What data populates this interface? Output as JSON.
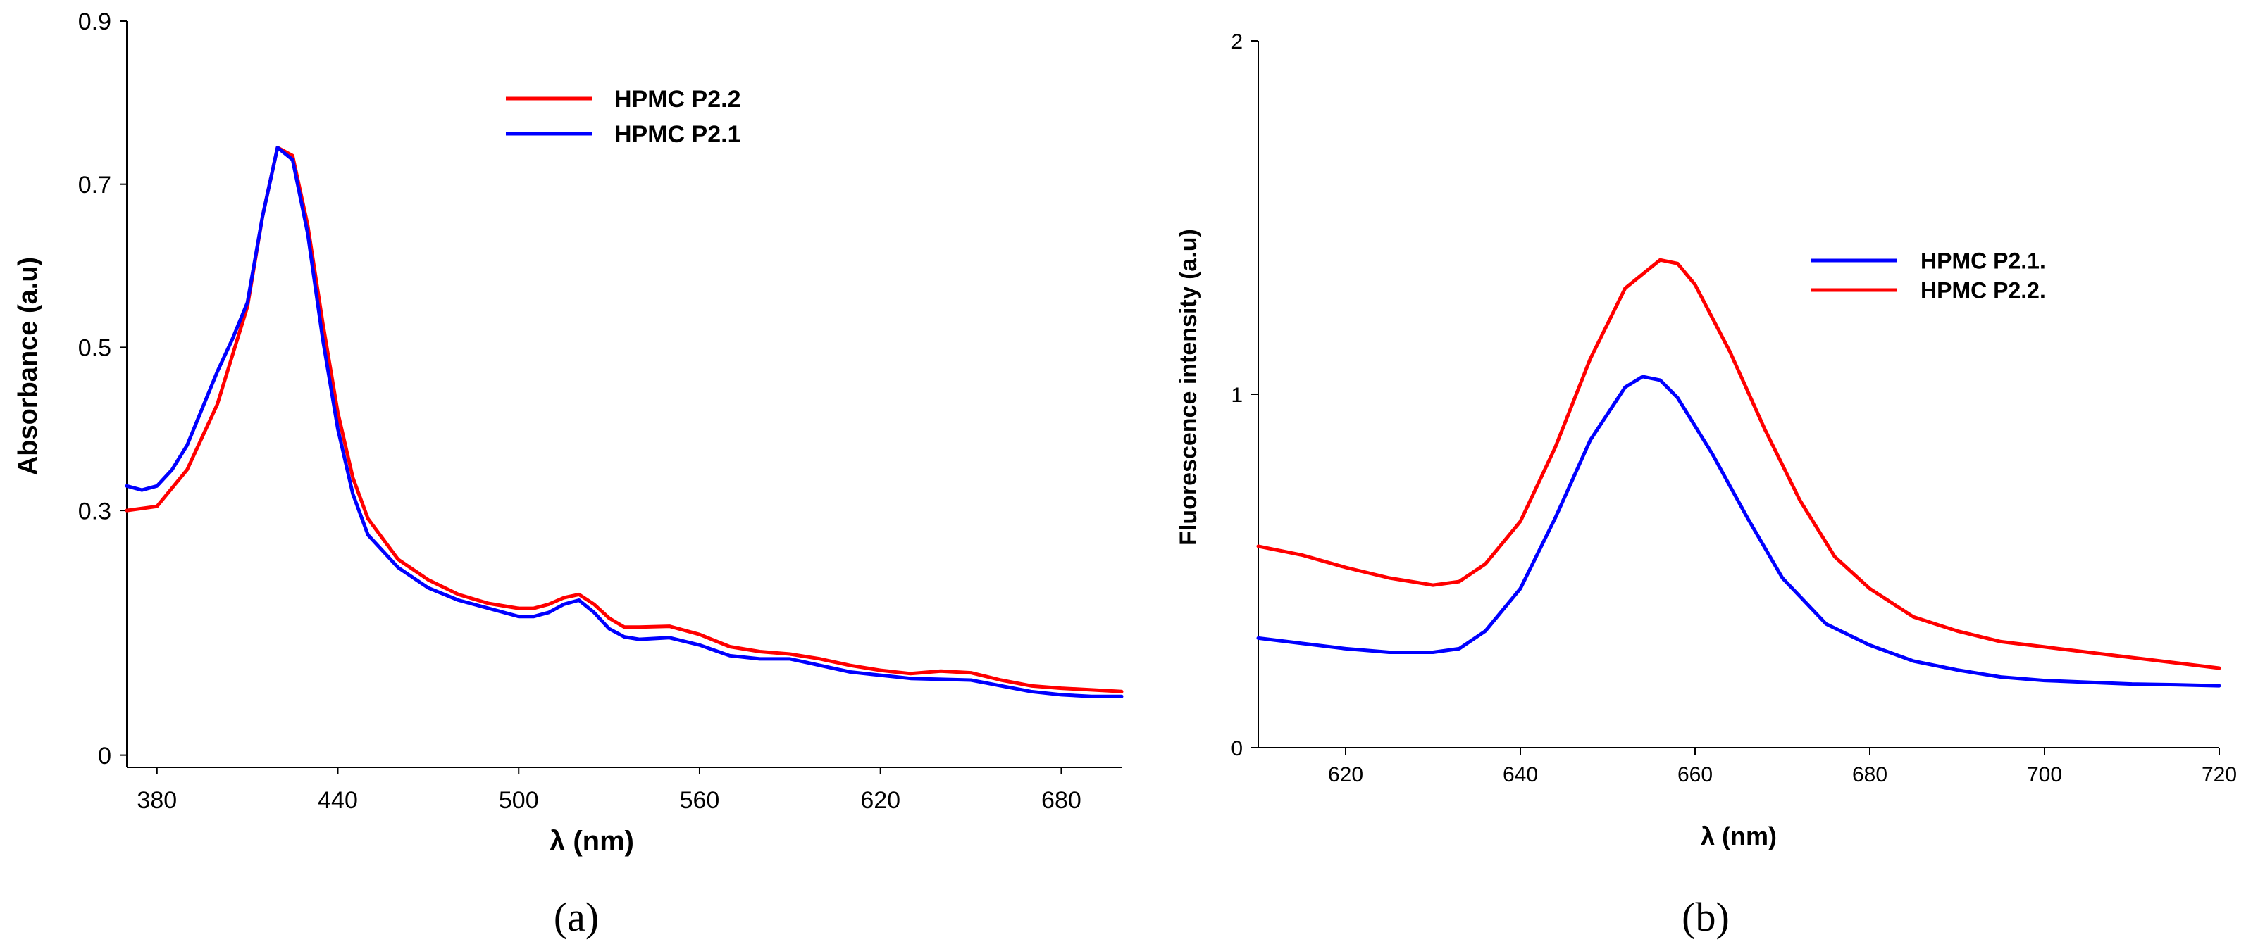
{
  "chart_data": [
    {
      "type": "line",
      "panel_label": "(a)",
      "xlabel": "λ  (nm)",
      "ylabel": "Absorbance (a.u)",
      "xlim": [
        370,
        700
      ],
      "ylim": [
        -0.015,
        0.9
      ],
      "xticks": [
        380,
        440,
        500,
        560,
        620,
        680
      ],
      "xtick_labels": [
        "380",
        "440",
        "500",
        "560",
        "620",
        "680"
      ],
      "yticks": [
        0,
        0.3,
        0.5,
        0.7,
        0.9
      ],
      "ytick_labels": [
        "0",
        "0.3",
        "0.5",
        "0.7",
        "0.9"
      ],
      "legend_position": "top-center",
      "series": [
        {
          "name": "HPMC P2.2",
          "color": "#ff0000",
          "x": [
            370,
            380,
            390,
            400,
            410,
            415,
            420,
            425,
            430,
            435,
            440,
            445,
            450,
            460,
            470,
            480,
            490,
            500,
            505,
            510,
            515,
            520,
            525,
            530,
            535,
            540,
            550,
            560,
            570,
            580,
            590,
            600,
            610,
            620,
            630,
            640,
            650,
            660,
            670,
            680,
            690,
            700
          ],
          "y": [
            0.3,
            0.305,
            0.35,
            0.43,
            0.55,
            0.66,
            0.745,
            0.735,
            0.65,
            0.53,
            0.42,
            0.34,
            0.29,
            0.24,
            0.215,
            0.197,
            0.186,
            0.18,
            0.18,
            0.185,
            0.193,
            0.197,
            0.185,
            0.168,
            0.157,
            0.157,
            0.158,
            0.148,
            0.133,
            0.127,
            0.124,
            0.118,
            0.11,
            0.104,
            0.1,
            0.103,
            0.101,
            0.092,
            0.085,
            0.082,
            0.08,
            0.078
          ]
        },
        {
          "name": "HPMC P2.1",
          "color": "#0000ff",
          "x": [
            370,
            375,
            380,
            385,
            390,
            400,
            405,
            410,
            415,
            420,
            425,
            430,
            435,
            440,
            445,
            450,
            460,
            470,
            480,
            490,
            500,
            505,
            510,
            515,
            520,
            525,
            530,
            535,
            540,
            550,
            560,
            570,
            580,
            590,
            600,
            610,
            620,
            630,
            640,
            650,
            660,
            670,
            680,
            690,
            700
          ],
          "y": [
            0.33,
            0.325,
            0.33,
            0.35,
            0.38,
            0.47,
            0.51,
            0.555,
            0.66,
            0.745,
            0.73,
            0.64,
            0.51,
            0.4,
            0.32,
            0.27,
            0.23,
            0.205,
            0.19,
            0.18,
            0.17,
            0.17,
            0.175,
            0.185,
            0.19,
            0.175,
            0.155,
            0.145,
            0.142,
            0.144,
            0.135,
            0.122,
            0.118,
            0.118,
            0.11,
            0.102,
            0.098,
            0.094,
            0.093,
            0.092,
            0.085,
            0.078,
            0.074,
            0.072,
            0.072
          ]
        }
      ]
    },
    {
      "type": "line",
      "panel_label": "(b)",
      "xlabel": "λ (nm)",
      "ylabel": "Fluorescence intensity (a.u)",
      "xlim": [
        610,
        720
      ],
      "ylim": [
        0,
        2
      ],
      "xticks": [
        620,
        640,
        660,
        680,
        700,
        720
      ],
      "xtick_labels": [
        "620",
        "640",
        "660",
        "680",
        "700",
        "720"
      ],
      "yticks": [
        0,
        1,
        2
      ],
      "ytick_labels": [
        "0",
        "1",
        "2"
      ],
      "legend_position": "right-center",
      "series": [
        {
          "name": "HPMC P2.1.",
          "color": "#0000ff",
          "x": [
            610,
            615,
            620,
            625,
            630,
            633,
            636,
            640,
            644,
            648,
            652,
            654,
            656,
            658,
            662,
            666,
            670,
            675,
            680,
            685,
            690,
            695,
            700,
            705,
            710,
            715,
            720
          ],
          "y": [
            0.31,
            0.295,
            0.28,
            0.27,
            0.27,
            0.28,
            0.33,
            0.45,
            0.65,
            0.87,
            1.02,
            1.05,
            1.04,
            0.99,
            0.83,
            0.65,
            0.48,
            0.35,
            0.29,
            0.245,
            0.22,
            0.2,
            0.19,
            0.185,
            0.18,
            0.178,
            0.175
          ]
        },
        {
          "name": "HPMC P2.2.",
          "color": "#ff0000",
          "x": [
            610,
            615,
            620,
            625,
            630,
            633,
            636,
            640,
            644,
            648,
            652,
            656,
            658,
            660,
            664,
            668,
            672,
            676,
            680,
            685,
            690,
            695,
            700,
            705,
            710,
            715,
            720
          ],
          "y": [
            0.57,
            0.545,
            0.51,
            0.48,
            0.46,
            0.47,
            0.52,
            0.64,
            0.85,
            1.1,
            1.3,
            1.38,
            1.37,
            1.31,
            1.12,
            0.9,
            0.7,
            0.54,
            0.45,
            0.37,
            0.33,
            0.3,
            0.285,
            0.27,
            0.255,
            0.24,
            0.225
          ]
        }
      ]
    }
  ]
}
